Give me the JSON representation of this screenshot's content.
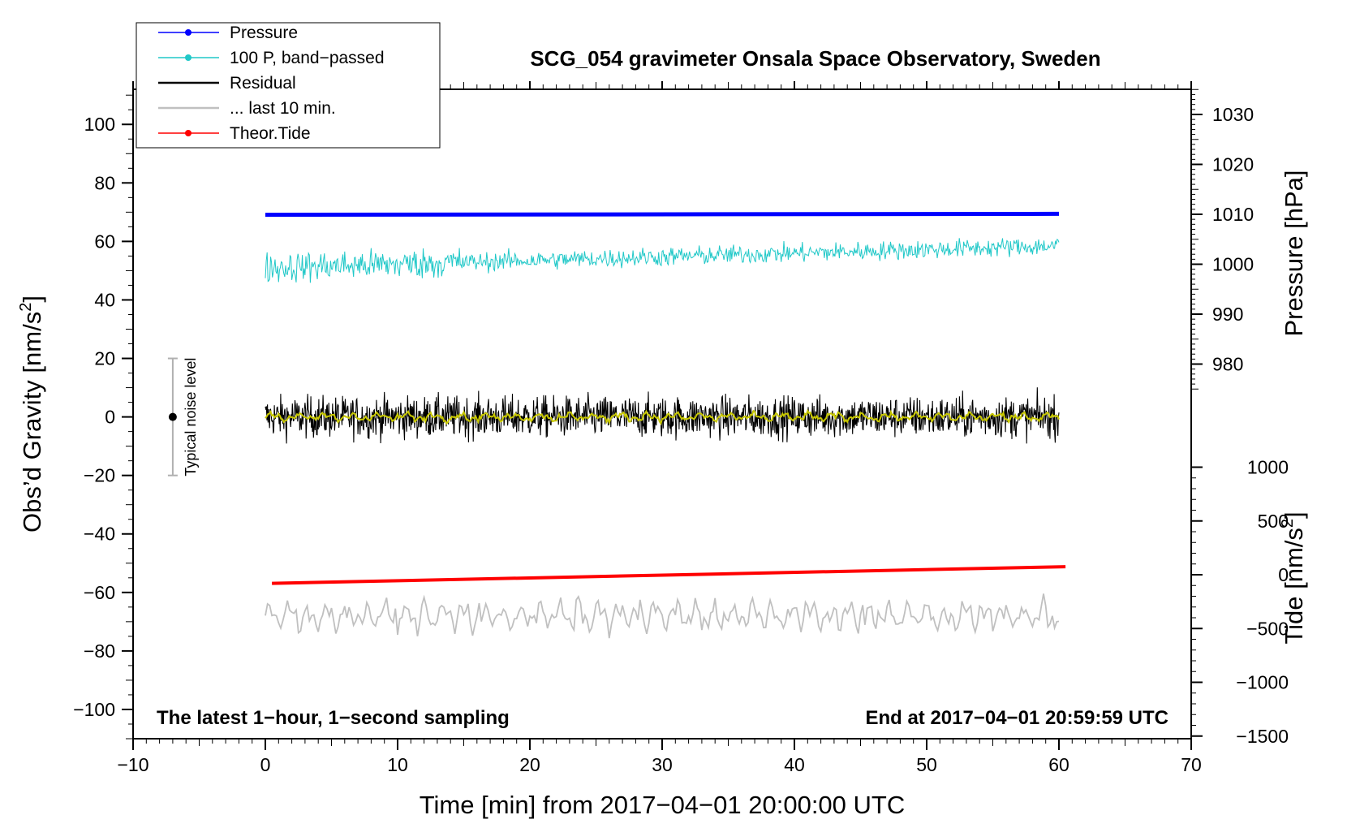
{
  "chart_data": {
    "type": "line",
    "title": "SCG_054 gravimeter Onsala Space Observatory, Sweden",
    "xlabel": "Time [min] from 2017−04−01 20:00:00 UTC",
    "xlim": [
      -10,
      70
    ],
    "x_ticks": [
      -10,
      0,
      10,
      20,
      30,
      40,
      50,
      60,
      70
    ],
    "x_tick_labels": [
      "−10",
      "0",
      "10",
      "20",
      "30",
      "40",
      "50",
      "60",
      "70"
    ],
    "y_left": {
      "label_main": "Obs’d Gravity [nm/s",
      "label_sup": "2",
      "label_end": "]",
      "ylim": [
        -110,
        112
      ],
      "ticks": [
        -100,
        -80,
        -60,
        -40,
        -20,
        0,
        20,
        40,
        60,
        80,
        100
      ],
      "tick_labels": [
        "−100",
        "−80",
        "−60",
        "−40",
        "−20",
        "0",
        "20",
        "40",
        "60",
        "80",
        "100"
      ]
    },
    "y_right_pressure": {
      "label": "Pressure [hPa]",
      "ticks": [
        980,
        990,
        1000,
        1010,
        1020,
        1030
      ],
      "tick_labels": [
        "980",
        "990",
        "1000",
        "1010",
        "1020",
        "1030"
      ]
    },
    "y_right_tide": {
      "label_main": "Tide [nm/s",
      "label_sup": "2",
      "label_end": "]",
      "ticks": [
        -1500,
        -1000,
        -500,
        0,
        500,
        1000
      ],
      "tick_labels": [
        "−1500",
        "−1000",
        "−500",
        "0",
        "500",
        "1000"
      ]
    },
    "series": [
      {
        "name": "Pressure",
        "color": "#0000ff",
        "unit": "hPa",
        "start": 1009.9,
        "end": 1010.1
      },
      {
        "name": "100 P, band−passed",
        "color": "#20c8c8",
        "unit": "nm/s2",
        "start": 51,
        "end": 58.5,
        "amplitude": 6
      },
      {
        "name": "Residual",
        "color": "#000000",
        "unit": "nm/s2",
        "mean": 0,
        "amplitude": 9
      },
      {
        "name": "... last 10 min.",
        "color": "#c0c0c0",
        "unit": "nm/s2",
        "mean": -68,
        "amplitude": 7
      },
      {
        "name": "Theor.Tide",
        "color": "#ff0000",
        "unit": "nm/s2 (tide)",
        "start": -80,
        "end": 75
      }
    ],
    "residual_smooth_color": "#c8c800",
    "noise_level": {
      "label": "Typical noise level",
      "x": -7,
      "center": 0,
      "low": -20,
      "high": 20
    },
    "note_left": "The latest 1−hour, 1−second sampling",
    "note_right": "End at 2017−04−01 20:59:59 UTC"
  }
}
